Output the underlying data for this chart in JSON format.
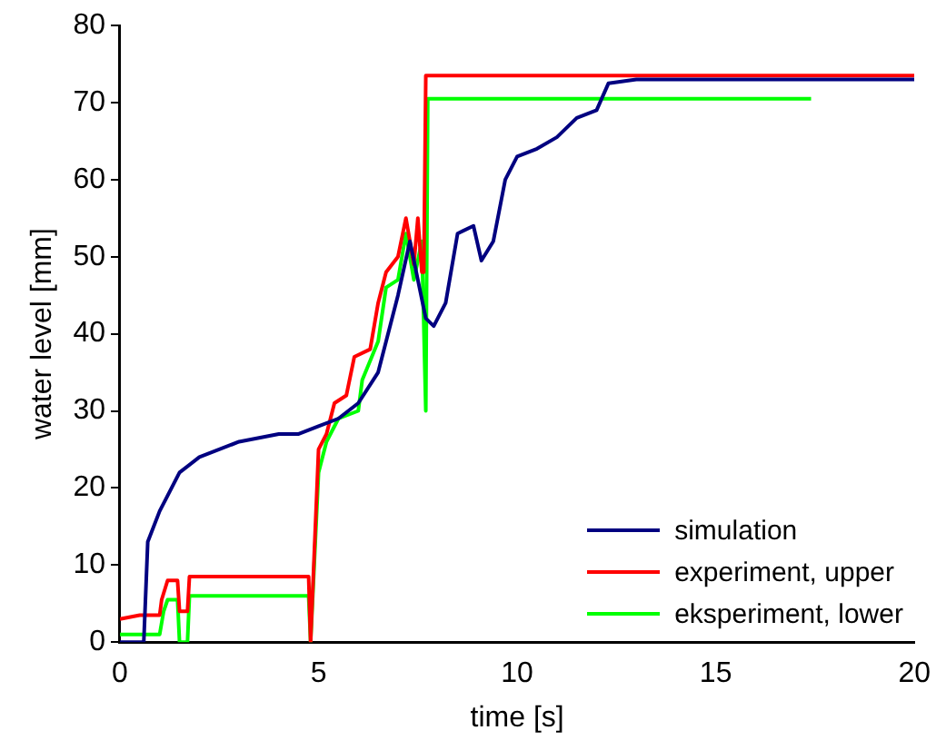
{
  "chart_data": {
    "type": "line",
    "xlabel": "time [s]",
    "ylabel": "water level [mm]",
    "xlim": [
      0,
      20
    ],
    "xticks": [
      0,
      5,
      10,
      15,
      20
    ],
    "ylim": [
      0,
      80
    ],
    "yticks": [
      0,
      10,
      20,
      30,
      40,
      50,
      60,
      70,
      80
    ],
    "grid": false,
    "legend": "bottom right",
    "marker": "none",
    "line_style": "solid",
    "series": [
      {
        "name": "simulation",
        "color": "#000080",
        "x": [
          0,
          0.6,
          0.7,
          1.0,
          1.5,
          2,
          3,
          4,
          4.5,
          5,
          5.5,
          6,
          6.5,
          7,
          7.3,
          7.5,
          7.7,
          7.9,
          8.2,
          8.5,
          8.9,
          9.1,
          9.4,
          9.7,
          10,
          10.5,
          11,
          11.5,
          12,
          12.3,
          13,
          20
        ],
        "values": [
          0,
          0,
          13,
          17,
          22,
          24,
          26,
          27,
          27,
          28,
          29,
          31,
          35,
          45,
          52,
          47,
          42,
          41,
          44,
          53,
          54,
          49.5,
          52,
          60,
          63,
          64,
          65.5,
          68,
          69,
          72.5,
          73,
          73
        ]
      },
      {
        "name": "experiment, upper",
        "color": "#ff0000",
        "x": [
          0,
          0.5,
          1.0,
          1.05,
          1.2,
          1.45,
          1.5,
          1.7,
          1.75,
          4.75,
          4.8,
          5.0,
          5.2,
          5.4,
          5.7,
          5.9,
          6.3,
          6.5,
          6.7,
          7.0,
          7.2,
          7.4,
          7.5,
          7.6,
          7.65,
          7.7,
          20
        ],
        "values": [
          3,
          3.5,
          3.5,
          5.5,
          8,
          8,
          4,
          4,
          8.5,
          8.5,
          0,
          25,
          27,
          31,
          32,
          37,
          38,
          44,
          48,
          50,
          55,
          49,
          55,
          48,
          48,
          73.5,
          73.5
        ]
      },
      {
        "name": "eksperiment, lower",
        "color": "#00ff00",
        "x": [
          0,
          1.0,
          1.1,
          1.2,
          1.45,
          1.5,
          1.7,
          1.75,
          4.75,
          4.8,
          5.0,
          5.2,
          5.5,
          6.0,
          6.1,
          6.5,
          6.7,
          7.0,
          7.2,
          7.4,
          7.6,
          7.7,
          7.75,
          17.4
        ],
        "values": [
          1,
          1,
          4,
          5.5,
          5.5,
          0,
          0,
          6,
          6,
          0,
          22,
          26,
          29,
          30,
          34,
          39,
          46,
          47,
          53,
          47,
          52,
          30,
          70.5,
          70.5
        ]
      }
    ]
  }
}
